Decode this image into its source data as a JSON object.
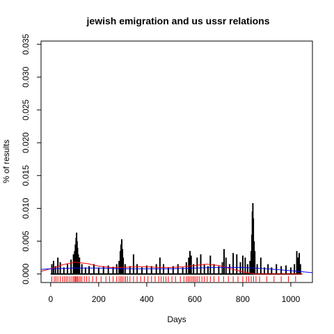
{
  "chart_data": {
    "type": "line",
    "title": "jewish emigration and us ussr relations",
    "xlabel": "Days",
    "ylabel": "% of results",
    "xlim": [
      -40,
      1090
    ],
    "ylim": [
      -0.0013,
      0.0355
    ],
    "x_ticks": [
      0,
      200,
      400,
      600,
      800,
      1000
    ],
    "y_ticks": [
      0.0,
      0.005,
      0.01,
      0.015,
      0.02,
      0.025,
      0.03,
      0.035
    ],
    "y_tick_labels": [
      "0.000",
      "0.005",
      "0.010",
      "0.015",
      "0.020",
      "0.025",
      "0.030",
      "0.035"
    ],
    "grid": false,
    "legend": "none",
    "colors": {
      "series": "#000000",
      "smooth_red": "#ff0000",
      "smooth_blue": "#0000ff",
      "rug": "#ff0000"
    },
    "series": [
      {
        "style": "spikes",
        "x": [
          5,
          12,
          20,
          30,
          40,
          55,
          70,
          85,
          95,
          100,
          103,
          106,
          108,
          110,
          112,
          115,
          120,
          130,
          145,
          160,
          180,
          200,
          220,
          240,
          260,
          275,
          285,
          290,
          293,
          296,
          299,
          302,
          310,
          330,
          345,
          360,
          380,
          400,
          420,
          440,
          455,
          470,
          490,
          510,
          530,
          550,
          565,
          575,
          580,
          585,
          595,
          610,
          625,
          640,
          655,
          665,
          680,
          700,
          715,
          722,
          730,
          745,
          760,
          775,
          790,
          800,
          810,
          820,
          830,
          835,
          838,
          840,
          842,
          844,
          847,
          850,
          860,
          875,
          890,
          905,
          920,
          940,
          960,
          980,
          1000,
          1015,
          1025,
          1030,
          1035,
          1040
        ],
        "values": [
          0.0015,
          0.002,
          0.0012,
          0.0025,
          0.0018,
          0.001,
          0.0015,
          0.0022,
          0.003,
          0.0035,
          0.0045,
          0.0055,
          0.0063,
          0.005,
          0.004,
          0.003,
          0.0025,
          0.0015,
          0.001,
          0.0012,
          0.0015,
          0.001,
          0.0012,
          0.0013,
          0.0011,
          0.0015,
          0.002,
          0.0035,
          0.0045,
          0.0053,
          0.0038,
          0.0025,
          0.0015,
          0.0012,
          0.003,
          0.0015,
          0.001,
          0.0013,
          0.0012,
          0.0015,
          0.0025,
          0.0015,
          0.001,
          0.0012,
          0.0015,
          0.001,
          0.0018,
          0.0025,
          0.0035,
          0.0028,
          0.0015,
          0.0025,
          0.003,
          0.0015,
          0.0012,
          0.0028,
          0.0015,
          0.0012,
          0.0018,
          0.0038,
          0.0025,
          0.0015,
          0.0032,
          0.003,
          0.0018,
          0.0028,
          0.0025,
          0.0015,
          0.002,
          0.0035,
          0.006,
          0.0095,
          0.0108,
          0.0085,
          0.005,
          0.0035,
          0.0015,
          0.0025,
          0.001,
          0.0015,
          0.001,
          0.0015,
          0.0012,
          0.0013,
          0.001,
          0.0015,
          0.0035,
          0.0025,
          0.0032,
          0.0015
        ]
      },
      {
        "style": "smooth",
        "color": "red",
        "x": [
          -40,
          0,
          50,
          100,
          150,
          200,
          250,
          300,
          350,
          400,
          450,
          500,
          550,
          600,
          650,
          700,
          750,
          800,
          850,
          900,
          950,
          1000,
          1050
        ],
        "values": [
          0.0004,
          0.0008,
          0.0014,
          0.0018,
          0.0016,
          0.0012,
          0.001,
          0.001,
          0.0011,
          0.0011,
          0.001,
          0.001,
          0.0011,
          0.0013,
          0.0015,
          0.0013,
          0.0008,
          0.0003,
          0.0,
          0.0,
          0.0,
          0.0,
          0.0
        ]
      },
      {
        "style": "smooth",
        "color": "blue",
        "x": [
          -40,
          0,
          100,
          200,
          300,
          400,
          500,
          600,
          700,
          800,
          900,
          1000,
          1090
        ],
        "values": [
          0.0007,
          0.0008,
          0.0009,
          0.0009,
          0.0008,
          0.0008,
          0.0008,
          0.0009,
          0.001,
          0.001,
          0.0008,
          0.0005,
          0.0002
        ]
      }
    ],
    "rug_x": [
      5,
      15,
      22,
      30,
      40,
      50,
      58,
      65,
      72,
      80,
      88,
      95,
      100,
      104,
      108,
      112,
      118,
      124,
      130,
      140,
      150,
      160,
      175,
      190,
      210,
      230,
      245,
      260,
      275,
      285,
      292,
      298,
      305,
      312,
      320,
      330,
      345,
      360,
      375,
      390,
      405,
      420,
      435,
      450,
      460,
      470,
      480,
      490,
      505,
      520,
      540,
      555,
      565,
      572,
      578,
      585,
      592,
      598,
      605,
      612,
      620,
      630,
      640,
      652,
      665,
      680,
      700,
      720,
      740,
      760,
      780,
      800,
      815,
      825,
      835,
      845,
      855,
      870,
      900,
      930,
      960,
      990,
      1020
    ]
  }
}
